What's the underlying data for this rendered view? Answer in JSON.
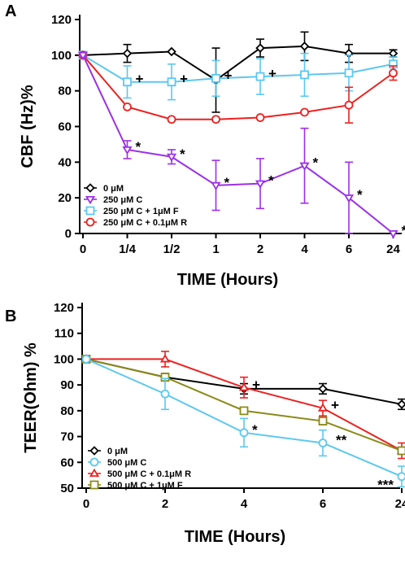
{
  "chart_data": [
    {
      "panel": "A",
      "type": "line",
      "ylabel": "CBF (Hz)%",
      "xlabel": "TIME (Hours)",
      "ylim": [
        0,
        120
      ],
      "yticks": [
        0,
        20,
        40,
        60,
        80,
        100,
        120
      ],
      "categories": [
        "0",
        "1/4",
        "1/2",
        "1",
        "2",
        "4",
        "6",
        "24"
      ],
      "legend_position": "bottom-left",
      "series": [
        {
          "name": "0 μM",
          "color": "#000000",
          "marker": "diamond",
          "values": [
            100,
            101,
            102,
            86,
            104,
            105,
            101,
            101
          ],
          "errors": [
            1,
            5,
            0,
            18,
            5,
            8,
            5,
            2
          ],
          "annotations": [
            "",
            "",
            "",
            "",
            "",
            "",
            "",
            ""
          ]
        },
        {
          "name": "250 μM C + 1μM F",
          "color": "#5bc8f0",
          "marker": "square",
          "values": [
            100,
            85,
            85,
            87,
            88,
            89,
            90,
            95
          ],
          "errors": [
            1,
            9,
            10,
            10,
            10,
            12,
            10,
            4
          ],
          "annotations": [
            "",
            "+",
            "+",
            "+",
            "+",
            "",
            "",
            ""
          ]
        },
        {
          "name": "250 μM C + 0.1μM R",
          "color": "#ee2020",
          "marker": "circle",
          "values": [
            100,
            71,
            64,
            64,
            65,
            68,
            72,
            90
          ],
          "errors": [
            1,
            0,
            0,
            0,
            0,
            0,
            10,
            4
          ],
          "annotations": [
            "",
            "",
            "",
            "",
            "",
            "",
            "",
            ""
          ]
        },
        {
          "name": "250 μM C",
          "color": "#9b30e8",
          "marker": "triangle-down",
          "values": [
            100,
            47,
            43,
            27,
            28,
            38,
            20,
            0
          ],
          "errors": [
            1,
            5,
            4,
            14,
            14,
            21,
            20,
            0
          ],
          "annotations": [
            "",
            "*",
            "*",
            "*",
            "*",
            "*",
            "*",
            "*"
          ]
        }
      ]
    },
    {
      "panel": "B",
      "type": "line",
      "ylabel": "TEER(Ohm) %",
      "xlabel": "TIME (Hours)",
      "ylim": [
        50,
        120
      ],
      "yticks": [
        50,
        60,
        70,
        80,
        90,
        100,
        110,
        120
      ],
      "categories": [
        "0",
        "2",
        "4",
        "6",
        "24"
      ],
      "legend_position": "bottom-left",
      "series": [
        {
          "name": "0 μM",
          "color": "#000000",
          "marker": "diamond",
          "values": [
            100,
            93,
            88.5,
            88.5,
            82.5
          ],
          "errors": [
            0.5,
            1,
            2,
            2,
            2
          ],
          "annotations": [
            "",
            "",
            "",
            "",
            ""
          ]
        },
        {
          "name": "500 μM C + 0.1μM R",
          "color": "#ee2020",
          "marker": "triangle-up",
          "values": [
            100,
            100,
            89,
            81,
            64.5
          ],
          "errors": [
            0.5,
            3,
            4,
            3,
            3
          ],
          "annotations": [
            "",
            "",
            "+",
            "+",
            ""
          ]
        },
        {
          "name": "500 μM C  + 1μM F",
          "color": "#8a8a1a",
          "marker": "square",
          "values": [
            100,
            93,
            80,
            76,
            64.5
          ],
          "errors": [
            0.5,
            1.5,
            0,
            0,
            0
          ],
          "annotations": [
            "",
            "",
            "",
            "",
            ""
          ]
        },
        {
          "name": "500 μM C",
          "color": "#5bc8f0",
          "marker": "circle",
          "values": [
            100,
            86.5,
            71.5,
            67.5,
            54.5
          ],
          "errors": [
            0.5,
            6,
            5.5,
            5,
            4
          ],
          "annotations": [
            "",
            "",
            "*",
            "**",
            "***"
          ]
        }
      ]
    }
  ],
  "legend_order": {
    "A": [
      "0 μM",
      "250 μM C",
      "250 μM C + 1μM F",
      "250 μM C + 0.1μM R"
    ],
    "B": [
      "0 μM",
      "500 μM C",
      "500 μM C + 0.1μM R",
      "500 μM C  + 1μM F"
    ]
  }
}
